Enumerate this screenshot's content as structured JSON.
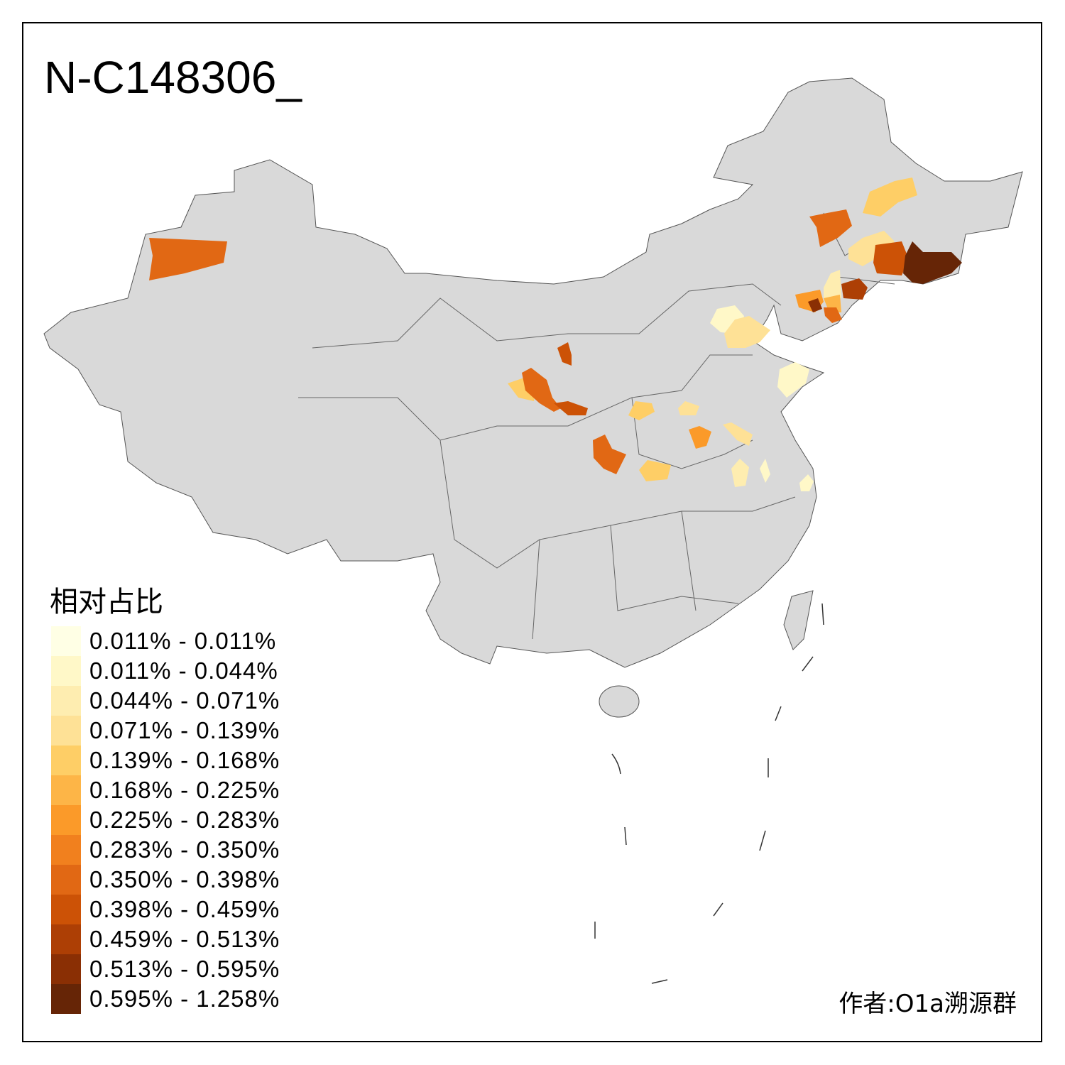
{
  "title": "N-C148306_",
  "legend": {
    "title": "相对占比",
    "items": [
      {
        "label": "0.011% - 0.011%",
        "color": "#FFFFE5"
      },
      {
        "label": "0.011% - 0.044%",
        "color": "#FFF8C8"
      },
      {
        "label": "0.044% - 0.071%",
        "color": "#FEEDB0"
      },
      {
        "label": "0.071% - 0.139%",
        "color": "#FEE196"
      },
      {
        "label": "0.139% - 0.168%",
        "color": "#FECE66"
      },
      {
        "label": "0.168% - 0.225%",
        "color": "#FDB547"
      },
      {
        "label": "0.225% - 0.283%",
        "color": "#FB9A29"
      },
      {
        "label": "0.283% - 0.350%",
        "color": "#F1801E"
      },
      {
        "label": "0.350% - 0.398%",
        "color": "#E16814"
      },
      {
        "label": "0.398% - 0.459%",
        "color": "#CC5206"
      },
      {
        "label": "0.459% - 0.513%",
        "color": "#AD3F05"
      },
      {
        "label": "0.513% - 0.595%",
        "color": "#8A2F04"
      },
      {
        "label": "0.595% - 1.258%",
        "color": "#662506"
      }
    ]
  },
  "base_color": "#D9D9D9",
  "author": "作者:O1a溯源群"
}
